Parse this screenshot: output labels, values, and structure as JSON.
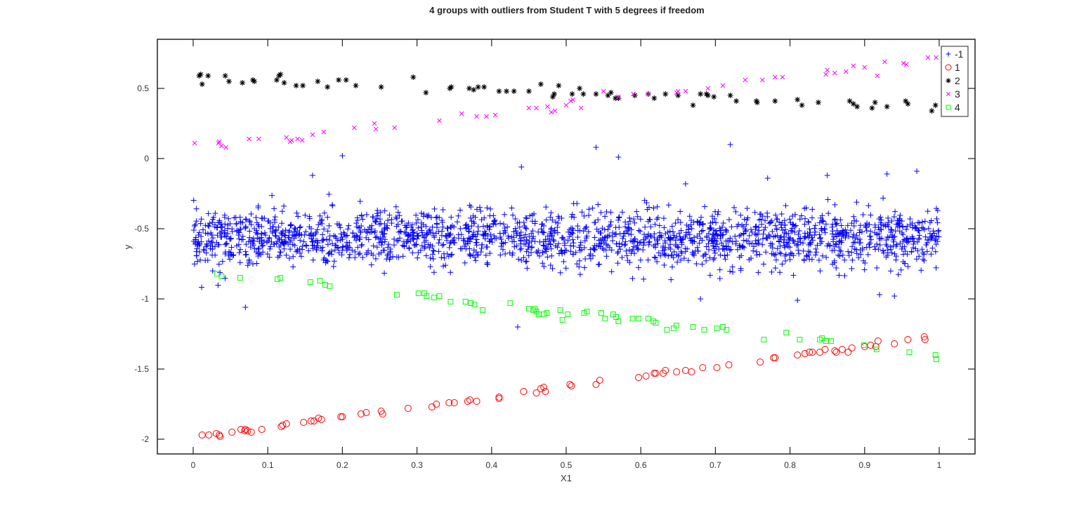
{
  "chart_data": {
    "type": "scatter",
    "title": "4 groups with outliers from Student T with 5 degrees if freedom",
    "xlabel": "X1",
    "ylabel": "y",
    "xlim": [
      -0.05,
      1.05
    ],
    "ylim": [
      -2.1,
      0.8
    ],
    "xticks": [
      "0",
      "0.1",
      "0.2",
      "0.3",
      "0.4",
      "0.5",
      "0.6",
      "0.7",
      "0.8",
      "0.9",
      "1"
    ],
    "yticks": [
      "0.5",
      "0",
      "-0.5",
      "-1",
      "-1.5",
      "-2"
    ],
    "grid": false,
    "legend_position": "top-right inside",
    "legend": [
      {
        "label": "-1",
        "marker": "+",
        "color": "#0000ff"
      },
      {
        "label": "1",
        "marker": "o",
        "color": "#ff0000"
      },
      {
        "label": "2",
        "marker": "*",
        "color": "#000000"
      },
      {
        "label": "3",
        "marker": "x",
        "color": "#ff00ff"
      },
      {
        "label": "4",
        "marker": "square",
        "color": "#00ff00"
      }
    ],
    "series": [
      {
        "name": "-1",
        "marker": "+",
        "color": "#0000ff",
        "description": "dense band ~2000 points, x uniform 0..1, y centered at -0.57 with spread approx -0.9..-0.3",
        "center_y": -0.57,
        "spread_y": 0.1,
        "count": 2000,
        "outliers": [
          [
            0.2,
            0.02
          ],
          [
            0.44,
            -0.06
          ],
          [
            0.54,
            0.08
          ],
          [
            0.57,
            0.01
          ],
          [
            0.72,
            0.1
          ],
          [
            0.07,
            -1.06
          ],
          [
            0.435,
            -1.2
          ],
          [
            0.77,
            -0.14
          ],
          [
            0.97,
            -0.09
          ],
          [
            0.93,
            -0.11
          ],
          [
            0.66,
            -0.18
          ],
          [
            0.85,
            -0.12
          ],
          [
            0.16,
            -0.12
          ],
          [
            0.68,
            -1.0
          ],
          [
            0.81,
            -1.01
          ],
          [
            0.92,
            -0.97
          ],
          [
            0.94,
            -0.98
          ]
        ]
      },
      {
        "name": "1",
        "marker": "o",
        "color": "#ff0000",
        "points": [
          [
            0.012,
            -1.97
          ],
          [
            0.021,
            -1.97
          ],
          [
            0.031,
            -1.96
          ],
          [
            0.035,
            -1.97
          ],
          [
            0.036,
            -1.98
          ],
          [
            0.052,
            -1.95
          ],
          [
            0.064,
            -1.93
          ],
          [
            0.069,
            -1.94
          ],
          [
            0.07,
            -1.93
          ],
          [
            0.073,
            -1.94
          ],
          [
            0.078,
            -1.95
          ],
          [
            0.092,
            -1.93
          ],
          [
            0.118,
            -1.91
          ],
          [
            0.12,
            -1.9
          ],
          [
            0.125,
            -1.89
          ],
          [
            0.148,
            -1.88
          ],
          [
            0.158,
            -1.87
          ],
          [
            0.162,
            -1.87
          ],
          [
            0.168,
            -1.85
          ],
          [
            0.172,
            -1.86
          ],
          [
            0.198,
            -1.84
          ],
          [
            0.2,
            -1.84
          ],
          [
            0.225,
            -1.82
          ],
          [
            0.232,
            -1.81
          ],
          [
            0.252,
            -1.8
          ],
          [
            0.254,
            -1.82
          ],
          [
            0.288,
            -1.78
          ],
          [
            0.32,
            -1.77
          ],
          [
            0.326,
            -1.75
          ],
          [
            0.343,
            -1.74
          ],
          [
            0.35,
            -1.74
          ],
          [
            0.368,
            -1.73
          ],
          [
            0.371,
            -1.72
          ],
          [
            0.38,
            -1.73
          ],
          [
            0.41,
            -1.7
          ],
          [
            0.41,
            -1.71
          ],
          [
            0.443,
            -1.66
          ],
          [
            0.46,
            -1.67
          ],
          [
            0.466,
            -1.64
          ],
          [
            0.47,
            -1.63
          ],
          [
            0.472,
            -1.66
          ],
          [
            0.505,
            -1.61
          ],
          [
            0.507,
            -1.62
          ],
          [
            0.54,
            -1.61
          ],
          [
            0.545,
            -1.58
          ],
          [
            0.597,
            -1.56
          ],
          [
            0.607,
            -1.55
          ],
          [
            0.618,
            -1.53
          ],
          [
            0.62,
            -1.53
          ],
          [
            0.63,
            -1.53
          ],
          [
            0.633,
            -1.51
          ],
          [
            0.648,
            -1.52
          ],
          [
            0.66,
            -1.51
          ],
          [
            0.668,
            -1.52
          ],
          [
            0.683,
            -1.49
          ],
          [
            0.702,
            -1.49
          ],
          [
            0.718,
            -1.47
          ],
          [
            0.76,
            -1.45
          ],
          [
            0.778,
            -1.42
          ],
          [
            0.78,
            -1.42
          ],
          [
            0.81,
            -1.4
          ],
          [
            0.82,
            -1.39
          ],
          [
            0.826,
            -1.38
          ],
          [
            0.83,
            -1.38
          ],
          [
            0.84,
            -1.38
          ],
          [
            0.847,
            -1.36
          ],
          [
            0.86,
            -1.37
          ],
          [
            0.862,
            -1.38
          ],
          [
            0.87,
            -1.36
          ],
          [
            0.878,
            -1.38
          ],
          [
            0.883,
            -1.35
          ],
          [
            0.9,
            -1.34
          ],
          [
            0.908,
            -1.33
          ],
          [
            0.915,
            -1.34
          ],
          [
            0.918,
            -1.3
          ],
          [
            0.94,
            -1.32
          ],
          [
            0.958,
            -1.29
          ],
          [
            0.98,
            -1.27
          ],
          [
            0.981,
            -1.29
          ]
        ]
      },
      {
        "name": "2",
        "marker": "*",
        "color": "#000000",
        "points": [
          [
            0.008,
            0.59
          ],
          [
            0.01,
            0.6
          ],
          [
            0.012,
            0.53
          ],
          [
            0.02,
            0.59
          ],
          [
            0.043,
            0.59
          ],
          [
            0.048,
            0.55
          ],
          [
            0.066,
            0.54
          ],
          [
            0.08,
            0.56
          ],
          [
            0.082,
            0.55
          ],
          [
            0.112,
            0.56
          ],
          [
            0.115,
            0.59
          ],
          [
            0.117,
            0.6
          ],
          [
            0.122,
            0.54
          ],
          [
            0.138,
            0.52
          ],
          [
            0.147,
            0.52
          ],
          [
            0.167,
            0.55
          ],
          [
            0.18,
            0.51
          ],
          [
            0.195,
            0.56
          ],
          [
            0.205,
            0.56
          ],
          [
            0.218,
            0.52
          ],
          [
            0.252,
            0.51
          ],
          [
            0.295,
            0.58
          ],
          [
            0.312,
            0.47
          ],
          [
            0.344,
            0.5
          ],
          [
            0.346,
            0.51
          ],
          [
            0.37,
            0.5
          ],
          [
            0.376,
            0.49
          ],
          [
            0.382,
            0.51
          ],
          [
            0.39,
            0.51
          ],
          [
            0.41,
            0.48
          ],
          [
            0.42,
            0.48
          ],
          [
            0.43,
            0.48
          ],
          [
            0.45,
            0.48
          ],
          [
            0.466,
            0.53
          ],
          [
            0.482,
            0.44
          ],
          [
            0.484,
            0.46
          ],
          [
            0.49,
            0.52
          ],
          [
            0.508,
            0.46
          ],
          [
            0.518,
            0.5
          ],
          [
            0.523,
            0.46
          ],
          [
            0.54,
            0.46
          ],
          [
            0.556,
            0.45
          ],
          [
            0.56,
            0.47
          ],
          [
            0.566,
            0.43
          ],
          [
            0.57,
            0.43
          ],
          [
            0.592,
            0.45
          ],
          [
            0.61,
            0.46
          ],
          [
            0.618,
            0.43
          ],
          [
            0.633,
            0.46
          ],
          [
            0.65,
            0.45
          ],
          [
            0.67,
            0.38
          ],
          [
            0.68,
            0.46
          ],
          [
            0.688,
            0.46
          ],
          [
            0.69,
            0.45
          ],
          [
            0.698,
            0.44
          ],
          [
            0.72,
            0.45
          ],
          [
            0.728,
            0.41
          ],
          [
            0.755,
            0.41
          ],
          [
            0.756,
            0.4
          ],
          [
            0.78,
            0.41
          ],
          [
            0.81,
            0.42
          ],
          [
            0.816,
            0.38
          ],
          [
            0.838,
            0.4
          ],
          [
            0.88,
            0.41
          ],
          [
            0.885,
            0.39
          ],
          [
            0.89,
            0.37
          ],
          [
            0.91,
            0.36
          ],
          [
            0.914,
            0.4
          ],
          [
            0.93,
            0.37
          ],
          [
            0.955,
            0.41
          ],
          [
            0.958,
            0.39
          ],
          [
            0.99,
            0.34
          ],
          [
            0.995,
            0.38
          ]
        ]
      },
      {
        "name": "3",
        "marker": "x",
        "color": "#ff00ff",
        "points": [
          [
            0.002,
            0.11
          ],
          [
            0.034,
            0.11
          ],
          [
            0.035,
            0.12
          ],
          [
            0.038,
            0.09
          ],
          [
            0.044,
            0.08
          ],
          [
            0.075,
            0.14
          ],
          [
            0.088,
            0.14
          ],
          [
            0.125,
            0.15
          ],
          [
            0.13,
            0.12
          ],
          [
            0.132,
            0.13
          ],
          [
            0.14,
            0.14
          ],
          [
            0.146,
            0.13
          ],
          [
            0.16,
            0.17
          ],
          [
            0.175,
            0.19
          ],
          [
            0.216,
            0.22
          ],
          [
            0.243,
            0.25
          ],
          [
            0.245,
            0.21
          ],
          [
            0.27,
            0.22
          ],
          [
            0.33,
            0.27
          ],
          [
            0.36,
            0.32
          ],
          [
            0.38,
            0.3
          ],
          [
            0.393,
            0.3
          ],
          [
            0.405,
            0.31
          ],
          [
            0.45,
            0.36
          ],
          [
            0.46,
            0.36
          ],
          [
            0.475,
            0.37
          ],
          [
            0.48,
            0.33
          ],
          [
            0.485,
            0.34
          ],
          [
            0.5,
            0.38
          ],
          [
            0.506,
            0.41
          ],
          [
            0.509,
            0.42
          ],
          [
            0.52,
            0.36
          ],
          [
            0.55,
            0.48
          ],
          [
            0.57,
            0.44
          ],
          [
            0.59,
            0.46
          ],
          [
            0.61,
            0.46
          ],
          [
            0.648,
            0.47
          ],
          [
            0.65,
            0.48
          ],
          [
            0.66,
            0.48
          ],
          [
            0.69,
            0.5
          ],
          [
            0.71,
            0.52
          ],
          [
            0.74,
            0.56
          ],
          [
            0.763,
            0.56
          ],
          [
            0.78,
            0.58
          ],
          [
            0.79,
            0.58
          ],
          [
            0.848,
            0.6
          ],
          [
            0.85,
            0.63
          ],
          [
            0.86,
            0.61
          ],
          [
            0.875,
            0.62
          ],
          [
            0.885,
            0.66
          ],
          [
            0.9,
            0.65
          ],
          [
            0.917,
            0.59
          ],
          [
            0.927,
            0.69
          ],
          [
            0.952,
            0.68
          ],
          [
            0.956,
            0.67
          ],
          [
            0.985,
            0.72
          ],
          [
            0.996,
            0.72
          ]
        ]
      },
      {
        "name": "4",
        "marker": "square",
        "color": "#00ff00",
        "points": [
          [
            0.032,
            -0.82
          ],
          [
            0.038,
            -0.84
          ],
          [
            0.063,
            -0.85
          ],
          [
            0.113,
            -0.86
          ],
          [
            0.117,
            -0.85
          ],
          [
            0.157,
            -0.88
          ],
          [
            0.17,
            -0.87
          ],
          [
            0.177,
            -0.9
          ],
          [
            0.183,
            -0.91
          ],
          [
            0.273,
            -0.97
          ],
          [
            0.302,
            -0.96
          ],
          [
            0.31,
            -0.96
          ],
          [
            0.313,
            -0.98
          ],
          [
            0.323,
            -0.99
          ],
          [
            0.33,
            -0.98
          ],
          [
            0.345,
            -1.02
          ],
          [
            0.365,
            -1.02
          ],
          [
            0.372,
            -1.03
          ],
          [
            0.377,
            -1.04
          ],
          [
            0.388,
            -1.08
          ],
          [
            0.425,
            -1.03
          ],
          [
            0.45,
            -1.07
          ],
          [
            0.456,
            -1.08
          ],
          [
            0.458,
            -1.07
          ],
          [
            0.46,
            -1.09
          ],
          [
            0.463,
            -1.11
          ],
          [
            0.47,
            -1.11
          ],
          [
            0.474,
            -1.1
          ],
          [
            0.492,
            -1.08
          ],
          [
            0.495,
            -1.15
          ],
          [
            0.502,
            -1.11
          ],
          [
            0.524,
            -1.1
          ],
          [
            0.528,
            -1.09
          ],
          [
            0.547,
            -1.1
          ],
          [
            0.552,
            -1.14
          ],
          [
            0.563,
            -1.11
          ],
          [
            0.567,
            -1.13
          ],
          [
            0.57,
            -1.16
          ],
          [
            0.589,
            -1.14
          ],
          [
            0.597,
            -1.14
          ],
          [
            0.61,
            -1.14
          ],
          [
            0.617,
            -1.16
          ],
          [
            0.62,
            -1.17
          ],
          [
            0.635,
            -1.22
          ],
          [
            0.644,
            -1.21
          ],
          [
            0.648,
            -1.19
          ],
          [
            0.67,
            -1.2
          ],
          [
            0.685,
            -1.22
          ],
          [
            0.702,
            -1.21
          ],
          [
            0.71,
            -1.2
          ],
          [
            0.715,
            -1.22
          ],
          [
            0.765,
            -1.29
          ],
          [
            0.795,
            -1.24
          ],
          [
            0.813,
            -1.29
          ],
          [
            0.84,
            -1.29
          ],
          [
            0.843,
            -1.28
          ],
          [
            0.848,
            -1.3
          ],
          [
            0.855,
            -1.3
          ],
          [
            0.899,
            -1.33
          ],
          [
            0.916,
            -1.36
          ],
          [
            0.96,
            -1.38
          ],
          [
            0.995,
            -1.4
          ],
          [
            0.996,
            -1.43
          ]
        ]
      }
    ]
  }
}
